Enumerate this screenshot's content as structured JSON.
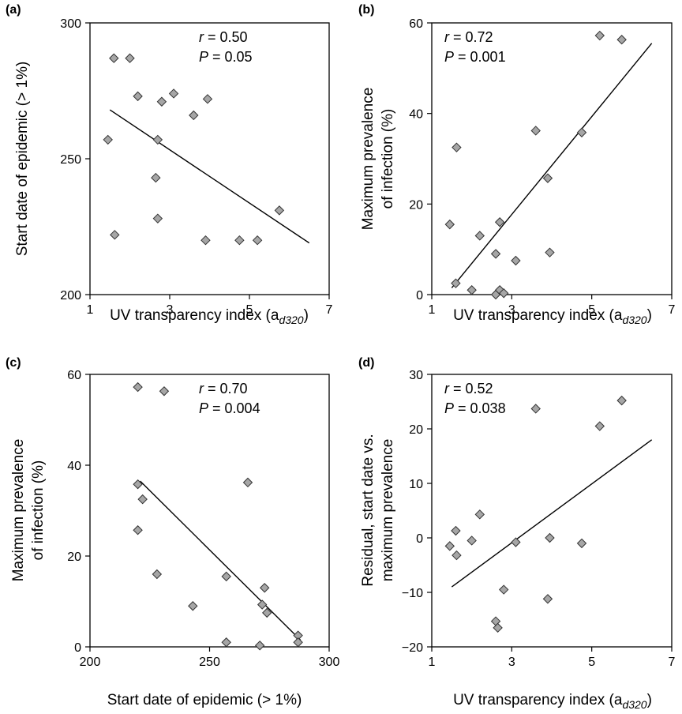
{
  "chart_data": [
    {
      "type": "scatter",
      "panel_label": "(a)",
      "xlabel": "UV transparency index (a",
      "xlabel_sub": "d320",
      "xlabel_end": ")",
      "ylabel": "Start date of epidemic (> 1%)",
      "xlim": [
        1,
        7
      ],
      "ylim": [
        200,
        300
      ],
      "xticks": [
        "1",
        "3",
        "5",
        "7"
      ],
      "yticks": [
        "200",
        "250",
        "300"
      ],
      "stats": {
        "r_symbol": "r",
        "r_text": " = 0.50",
        "p_symbol": "P",
        "p_text": " = 0.05"
      },
      "marker_color": "#a6a6a6",
      "fit_line": {
        "x": [
          1.5,
          6.5
        ],
        "y": [
          268,
          219
        ]
      },
      "series": [
        {
          "x": [
            1.45,
            1.6,
            1.62,
            2.0,
            2.2,
            2.65,
            2.7,
            2.7,
            2.8,
            3.1,
            3.6,
            3.9,
            3.95,
            4.75,
            5.2,
            5.75
          ],
          "y": [
            257,
            287,
            222,
            287,
            273,
            243,
            257,
            228,
            271,
            274,
            266,
            220,
            272,
            220,
            220,
            231
          ]
        }
      ]
    },
    {
      "type": "scatter",
      "panel_label": "(b)",
      "xlabel": "UV transparency index (a",
      "xlabel_sub": "d320",
      "xlabel_end": ")",
      "ylabel": "Maximum prevalence of infection (%)",
      "ylabel_lines": [
        "Maximum prevalence",
        "of infection (%)"
      ],
      "xlim": [
        1,
        7
      ],
      "ylim": [
        0,
        60
      ],
      "xticks": [
        "1",
        "3",
        "5",
        "7"
      ],
      "yticks": [
        "0",
        "20",
        "40",
        "60"
      ],
      "stats": {
        "r_symbol": "r",
        "r_text": " = 0.72",
        "p_symbol": "P",
        "p_text": " = 0.001"
      },
      "marker_color": "#a6a6a6",
      "fit_line": {
        "x": [
          1.5,
          6.5
        ],
        "y": [
          1.5,
          55.5
        ]
      },
      "series": [
        {
          "x": [
            1.45,
            1.6,
            1.62,
            2.0,
            2.2,
            2.6,
            2.6,
            2.7,
            2.7,
            2.8,
            3.1,
            3.6,
            3.9,
            3.95,
            4.75,
            5.2,
            5.75
          ],
          "y": [
            15.5,
            2.5,
            32.5,
            1.0,
            13.0,
            9.0,
            0.0,
            16.0,
            1.0,
            0.3,
            7.5,
            36.2,
            25.7,
            9.3,
            35.8,
            57.2,
            56.3
          ]
        }
      ]
    },
    {
      "type": "scatter",
      "panel_label": "(c)",
      "xlabel": "Start date of epidemic (> 1%)",
      "ylabel": "Maximum prevalence of infection (%)",
      "ylabel_lines": [
        "Maximum prevalence",
        "of infection (%)"
      ],
      "xlim": [
        200,
        300
      ],
      "ylim": [
        0,
        60
      ],
      "xticks": [
        "200",
        "250",
        "300"
      ],
      "yticks": [
        "0",
        "20",
        "40",
        "60"
      ],
      "stats": {
        "r_symbol": "r",
        "r_text": " = 0.70",
        "p_symbol": "P",
        "p_text": " = 0.004"
      },
      "marker_color": "#a6a6a6",
      "fit_line": {
        "x": [
          221,
          288
        ],
        "y": [
          36.5,
          1.5
        ]
      },
      "series": [
        {
          "x": [
            220,
            220,
            220,
            222,
            228,
            231,
            243,
            257,
            257,
            266,
            271,
            272,
            273,
            274,
            287,
            287
          ],
          "y": [
            57.2,
            35.8,
            25.7,
            32.5,
            16.0,
            56.3,
            9.0,
            15.5,
            1.0,
            36.2,
            0.3,
            9.3,
            13.0,
            7.5,
            2.5,
            1.0
          ]
        }
      ]
    },
    {
      "type": "scatter",
      "panel_label": "(d)",
      "xlabel": "UV transparency index (a",
      "xlabel_sub": "d320",
      "xlabel_end": ")",
      "ylabel": "Residual, start date vs. maximum prevalence",
      "ylabel_lines": [
        "Residual, start date vs.",
        "maximum prevalence"
      ],
      "xlim": [
        1,
        7
      ],
      "ylim": [
        -20,
        30
      ],
      "xticks": [
        "1",
        "3",
        "5",
        "7"
      ],
      "yticks": [
        "−20",
        "−10",
        "0",
        "10",
        "20",
        "30"
      ],
      "stats": {
        "r_symbol": "r",
        "r_text": " = 0.52",
        "p_symbol": "P",
        "p_text": " = 0.038"
      },
      "marker_color": "#a6a6a6",
      "fit_line": {
        "x": [
          1.5,
          6.5
        ],
        "y": [
          -9.0,
          18.0
        ]
      },
      "series": [
        {
          "x": [
            1.45,
            1.6,
            1.62,
            2.0,
            2.2,
            2.6,
            2.65,
            2.8,
            3.1,
            3.6,
            3.9,
            3.95,
            4.75,
            5.2,
            5.75
          ],
          "y": [
            -1.5,
            1.3,
            -3.2,
            -0.5,
            4.3,
            -15.3,
            -16.5,
            -9.5,
            -0.8,
            23.7,
            -11.2,
            0.0,
            -1.0,
            20.5,
            25.2
          ]
        }
      ]
    }
  ]
}
